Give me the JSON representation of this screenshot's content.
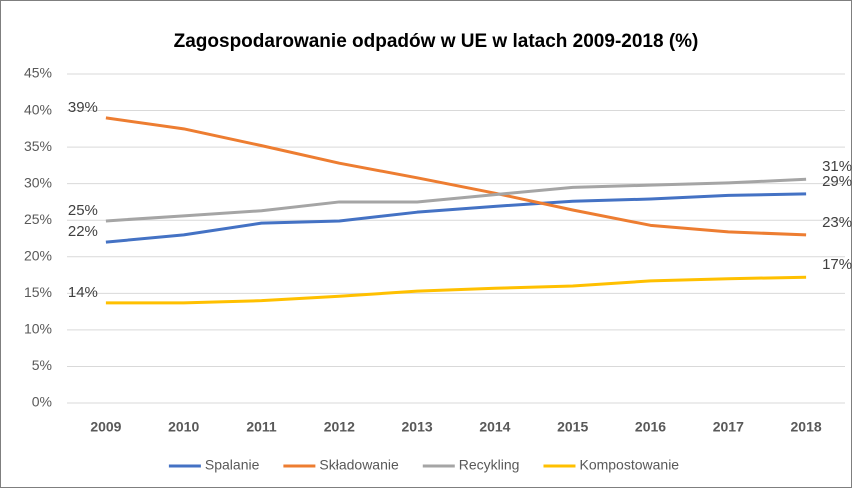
{
  "chart_data": {
    "type": "line",
    "title": "Zagospodarowanie odpadów w UE w latach 2009-2018 (%)",
    "categories": [
      "2009",
      "2010",
      "2011",
      "2012",
      "2013",
      "2014",
      "2015",
      "2016",
      "2017",
      "2018"
    ],
    "series": [
      {
        "name": "Spalanie",
        "color": "#4472c4",
        "values": [
          22.0,
          23.0,
          24.6,
          24.9,
          26.1,
          26.9,
          27.6,
          27.9,
          28.4,
          28.6
        ],
        "value_labels": [
          "22%",
          null,
          null,
          null,
          null,
          null,
          null,
          null,
          null,
          "29%"
        ]
      },
      {
        "name": "Składowanie",
        "color": "#ed7d31",
        "values": [
          39.0,
          37.5,
          35.2,
          32.8,
          30.8,
          28.7,
          26.4,
          24.3,
          23.4,
          23.0
        ],
        "value_labels": [
          "39%",
          null,
          null,
          null,
          null,
          null,
          null,
          null,
          null,
          "23%"
        ]
      },
      {
        "name": "Recykling",
        "color": "#a5a5a5",
        "values": [
          24.9,
          25.6,
          26.3,
          27.5,
          27.5,
          28.5,
          29.5,
          29.8,
          30.1,
          30.6
        ],
        "value_labels": [
          "25%",
          null,
          null,
          null,
          null,
          null,
          null,
          null,
          null,
          "31%"
        ]
      },
      {
        "name": "Kompostowanie",
        "color": "#ffc000",
        "values": [
          13.7,
          13.7,
          14.0,
          14.6,
          15.3,
          15.7,
          16.0,
          16.7,
          17.0,
          17.2
        ],
        "value_labels": [
          "14%",
          null,
          null,
          null,
          null,
          null,
          null,
          null,
          null,
          "17%"
        ]
      }
    ],
    "ylim": [
      0,
      45
    ],
    "yticks": [
      {
        "value": 0,
        "label": "0%"
      },
      {
        "value": 5,
        "label": "5%"
      },
      {
        "value": 10,
        "label": "10%"
      },
      {
        "value": 15,
        "label": "15%"
      },
      {
        "value": 20,
        "label": "20%"
      },
      {
        "value": 25,
        "label": "25%"
      },
      {
        "value": 30,
        "label": "30%"
      },
      {
        "value": 35,
        "label": "35%"
      },
      {
        "value": 40,
        "label": "40%"
      },
      {
        "value": 45,
        "label": "45%"
      }
    ],
    "grid": true,
    "legend": "bottom"
  }
}
